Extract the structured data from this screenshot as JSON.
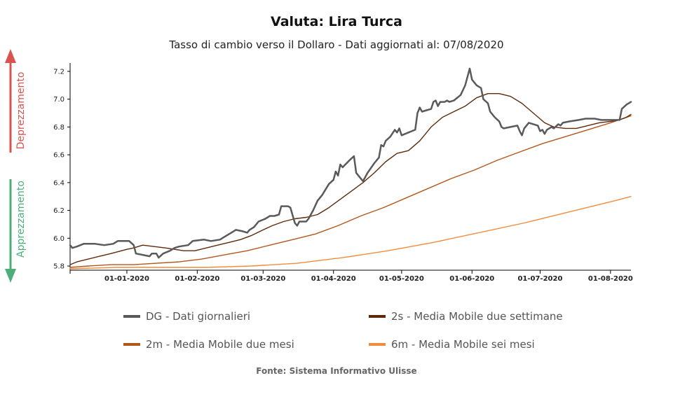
{
  "title": "Valuta: Lira Turca",
  "subtitle": "Tasso di cambio verso il Dollaro - Dati aggiornati al: 07/08/2020",
  "source": "Fonte: Sistema Informativo Ulisse",
  "side_labels": {
    "up": "Deprezzamento",
    "down": "Apprezzamento",
    "up_color": "#d9534f",
    "down_color": "#4caf7a"
  },
  "legend": [
    {
      "label": "DG - Dati giornalieri",
      "color": "#5a5a5a"
    },
    {
      "label": "2s - Media Mobile due settimane",
      "color": "#5c2a0a"
    },
    {
      "label": "2m - Media Mobile due mesi",
      "color": "#b3561a"
    },
    {
      "label": "6m - Media Mobile sei mesi",
      "color": "#f28c3c"
    }
  ],
  "chart_data": {
    "type": "line",
    "x_type": "date",
    "xlim": [
      "2019-12-07",
      "2020-08-10"
    ],
    "ylim": [
      5.77,
      7.26
    ],
    "yticks": [
      5.8,
      6.0,
      6.2,
      6.4,
      6.6,
      6.8,
      7.0,
      7.2
    ],
    "ytick_labels": [
      "5.8",
      "6.0",
      "6.2",
      "6.4",
      "6.6",
      "6.8",
      "7.0",
      "7.2"
    ],
    "xticks": [
      "2020-01-01",
      "2020-02-01",
      "2020-03-01",
      "2020-04-01",
      "2020-05-01",
      "2020-06-01",
      "2020-07-01",
      "2020-08-01"
    ],
    "xtick_labels": [
      "01-01-2020",
      "01-02-2020",
      "01-03-2020",
      "01-04-2020",
      "01-05-2020",
      "01-06-2020",
      "01-07-2020",
      "01-08-2020"
    ],
    "series": [
      {
        "name": "DG - Dati giornalieri",
        "color": "#5a5a5a",
        "width": 2.5,
        "points": [
          [
            "2019-12-07",
            5.95
          ],
          [
            "2019-12-08",
            5.93
          ],
          [
            "2019-12-10",
            5.94
          ],
          [
            "2019-12-13",
            5.96
          ],
          [
            "2019-12-18",
            5.96
          ],
          [
            "2019-12-22",
            5.95
          ],
          [
            "2019-12-26",
            5.96
          ],
          [
            "2019-12-28",
            5.98
          ],
          [
            "2020-01-02",
            5.98
          ],
          [
            "2020-01-04",
            5.95
          ],
          [
            "2020-01-05",
            5.89
          ],
          [
            "2020-01-08",
            5.88
          ],
          [
            "2020-01-11",
            5.87
          ],
          [
            "2020-01-12",
            5.89
          ],
          [
            "2020-01-14",
            5.89
          ],
          [
            "2020-01-15",
            5.86
          ],
          [
            "2020-01-17",
            5.89
          ],
          [
            "2020-01-20",
            5.91
          ],
          [
            "2020-01-22",
            5.93
          ],
          [
            "2020-01-24",
            5.94
          ],
          [
            "2020-01-28",
            5.95
          ],
          [
            "2020-01-30",
            5.98
          ],
          [
            "2020-02-04",
            5.99
          ],
          [
            "2020-02-07",
            5.98
          ],
          [
            "2020-02-11",
            5.99
          ],
          [
            "2020-02-14",
            6.02
          ],
          [
            "2020-02-16",
            6.04
          ],
          [
            "2020-02-18",
            6.06
          ],
          [
            "2020-02-21",
            6.05
          ],
          [
            "2020-02-23",
            6.04
          ],
          [
            "2020-02-24",
            6.06
          ],
          [
            "2020-02-26",
            6.08
          ],
          [
            "2020-02-28",
            6.12
          ],
          [
            "2020-03-02",
            6.14
          ],
          [
            "2020-03-04",
            6.16
          ],
          [
            "2020-03-06",
            6.16
          ],
          [
            "2020-03-08",
            6.17
          ],
          [
            "2020-03-09",
            6.23
          ],
          [
            "2020-03-12",
            6.23
          ],
          [
            "2020-03-13",
            6.22
          ],
          [
            "2020-03-15",
            6.11
          ],
          [
            "2020-03-16",
            6.09
          ],
          [
            "2020-03-17",
            6.12
          ],
          [
            "2020-03-20",
            6.12
          ],
          [
            "2020-03-21",
            6.14
          ],
          [
            "2020-03-23",
            6.2
          ],
          [
            "2020-03-25",
            6.27
          ],
          [
            "2020-03-27",
            6.31
          ],
          [
            "2020-03-30",
            6.39
          ],
          [
            "2020-04-01",
            6.42
          ],
          [
            "2020-04-02",
            6.48
          ],
          [
            "2020-04-03",
            6.45
          ],
          [
            "2020-04-04",
            6.53
          ],
          [
            "2020-04-05",
            6.51
          ],
          [
            "2020-04-08",
            6.56
          ],
          [
            "2020-04-10",
            6.59
          ],
          [
            "2020-04-11",
            6.47
          ],
          [
            "2020-04-13",
            6.43
          ],
          [
            "2020-04-14",
            6.41
          ],
          [
            "2020-04-16",
            6.47
          ],
          [
            "2020-04-19",
            6.54
          ],
          [
            "2020-04-21",
            6.58
          ],
          [
            "2020-04-22",
            6.67
          ],
          [
            "2020-04-23",
            6.66
          ],
          [
            "2020-04-24",
            6.7
          ],
          [
            "2020-04-26",
            6.73
          ],
          [
            "2020-04-28",
            6.78
          ],
          [
            "2020-04-29",
            6.76
          ],
          [
            "2020-04-30",
            6.79
          ],
          [
            "2020-05-01",
            6.74
          ],
          [
            "2020-05-04",
            6.76
          ],
          [
            "2020-05-07",
            6.78
          ],
          [
            "2020-05-08",
            6.9
          ],
          [
            "2020-05-09",
            6.94
          ],
          [
            "2020-05-10",
            6.91
          ],
          [
            "2020-05-12",
            6.92
          ],
          [
            "2020-05-14",
            6.93
          ],
          [
            "2020-05-15",
            6.98
          ],
          [
            "2020-05-16",
            6.99
          ],
          [
            "2020-05-17",
            6.95
          ],
          [
            "2020-05-18",
            6.98
          ],
          [
            "2020-05-20",
            6.98
          ],
          [
            "2020-05-21",
            6.99
          ],
          [
            "2020-05-22",
            6.98
          ],
          [
            "2020-05-24",
            6.99
          ],
          [
            "2020-05-27",
            7.03
          ],
          [
            "2020-05-29",
            7.1
          ],
          [
            "2020-05-31",
            7.22
          ],
          [
            "2020-06-01",
            7.14
          ],
          [
            "2020-06-03",
            7.1
          ],
          [
            "2020-06-05",
            7.08
          ],
          [
            "2020-06-06",
            7.0
          ],
          [
            "2020-06-08",
            6.97
          ],
          [
            "2020-06-09",
            6.91
          ],
          [
            "2020-06-11",
            6.87
          ],
          [
            "2020-06-13",
            6.84
          ],
          [
            "2020-06-14",
            6.8
          ],
          [
            "2020-06-15",
            6.79
          ],
          [
            "2020-06-18",
            6.8
          ],
          [
            "2020-06-21",
            6.81
          ],
          [
            "2020-06-22",
            6.77
          ],
          [
            "2020-06-23",
            6.74
          ],
          [
            "2020-06-24",
            6.79
          ],
          [
            "2020-06-26",
            6.83
          ],
          [
            "2020-06-28",
            6.82
          ],
          [
            "2020-06-30",
            6.81
          ],
          [
            "2020-07-01",
            6.77
          ],
          [
            "2020-07-02",
            6.78
          ],
          [
            "2020-07-03",
            6.75
          ],
          [
            "2020-07-04",
            6.78
          ],
          [
            "2020-07-06",
            6.8
          ],
          [
            "2020-07-07",
            6.79
          ],
          [
            "2020-07-09",
            6.82
          ],
          [
            "2020-07-10",
            6.81
          ],
          [
            "2020-07-11",
            6.83
          ],
          [
            "2020-07-14",
            6.84
          ],
          [
            "2020-07-18",
            6.85
          ],
          [
            "2020-07-21",
            6.86
          ],
          [
            "2020-07-25",
            6.86
          ],
          [
            "2020-07-28",
            6.85
          ],
          [
            "2020-07-31",
            6.85
          ],
          [
            "2020-08-04",
            6.85
          ],
          [
            "2020-08-05",
            6.85
          ],
          [
            "2020-08-06",
            6.93
          ],
          [
            "2020-08-08",
            6.96
          ],
          [
            "2020-08-10",
            6.98
          ]
        ]
      },
      {
        "name": "2s - Media Mobile due settimane",
        "color": "#5c2a0a",
        "width": 1.4,
        "points": [
          [
            "2019-12-07",
            5.81
          ],
          [
            "2019-12-10",
            5.83
          ],
          [
            "2019-12-15",
            5.85
          ],
          [
            "2019-12-20",
            5.87
          ],
          [
            "2019-12-25",
            5.89
          ],
          [
            "2020-01-01",
            5.92
          ],
          [
            "2020-01-04",
            5.93
          ],
          [
            "2020-01-08",
            5.95
          ],
          [
            "2020-01-13",
            5.94
          ],
          [
            "2020-01-18",
            5.93
          ],
          [
            "2020-01-22",
            5.92
          ],
          [
            "2020-01-26",
            5.91
          ],
          [
            "2020-01-31",
            5.91
          ],
          [
            "2020-02-05",
            5.93
          ],
          [
            "2020-02-10",
            5.95
          ],
          [
            "2020-02-15",
            5.97
          ],
          [
            "2020-02-20",
            5.99
          ],
          [
            "2020-02-25",
            6.02
          ],
          [
            "2020-03-01",
            6.06
          ],
          [
            "2020-03-05",
            6.09
          ],
          [
            "2020-03-10",
            6.12
          ],
          [
            "2020-03-15",
            6.14
          ],
          [
            "2020-03-20",
            6.15
          ],
          [
            "2020-03-25",
            6.17
          ],
          [
            "2020-03-30",
            6.22
          ],
          [
            "2020-04-04",
            6.28
          ],
          [
            "2020-04-09",
            6.34
          ],
          [
            "2020-04-14",
            6.4
          ],
          [
            "2020-04-19",
            6.47
          ],
          [
            "2020-04-24",
            6.55
          ],
          [
            "2020-04-29",
            6.61
          ],
          [
            "2020-05-04",
            6.63
          ],
          [
            "2020-05-09",
            6.7
          ],
          [
            "2020-05-14",
            6.8
          ],
          [
            "2020-05-19",
            6.87
          ],
          [
            "2020-05-24",
            6.91
          ],
          [
            "2020-05-29",
            6.95
          ],
          [
            "2020-06-03",
            7.01
          ],
          [
            "2020-06-08",
            7.04
          ],
          [
            "2020-06-13",
            7.04
          ],
          [
            "2020-06-18",
            7.02
          ],
          [
            "2020-06-23",
            6.97
          ],
          [
            "2020-06-28",
            6.9
          ],
          [
            "2020-07-03",
            6.83
          ],
          [
            "2020-07-07",
            6.8
          ],
          [
            "2020-07-12",
            6.79
          ],
          [
            "2020-07-17",
            6.79
          ],
          [
            "2020-07-22",
            6.81
          ],
          [
            "2020-07-27",
            6.83
          ],
          [
            "2020-08-01",
            6.84
          ],
          [
            "2020-08-05",
            6.85
          ],
          [
            "2020-08-08",
            6.87
          ],
          [
            "2020-08-10",
            6.89
          ]
        ]
      },
      {
        "name": "2m - Media Mobile due mesi",
        "color": "#b3561a",
        "width": 1.4,
        "points": [
          [
            "2019-12-07",
            5.79
          ],
          [
            "2019-12-15",
            5.8
          ],
          [
            "2019-12-25",
            5.81
          ],
          [
            "2020-01-04",
            5.81
          ],
          [
            "2020-01-14",
            5.82
          ],
          [
            "2020-01-24",
            5.83
          ],
          [
            "2020-02-03",
            5.85
          ],
          [
            "2020-02-13",
            5.88
          ],
          [
            "2020-02-23",
            5.91
          ],
          [
            "2020-03-04",
            5.95
          ],
          [
            "2020-03-14",
            5.99
          ],
          [
            "2020-03-24",
            6.03
          ],
          [
            "2020-04-03",
            6.09
          ],
          [
            "2020-04-13",
            6.16
          ],
          [
            "2020-04-23",
            6.22
          ],
          [
            "2020-05-03",
            6.29
          ],
          [
            "2020-05-13",
            6.36
          ],
          [
            "2020-05-23",
            6.43
          ],
          [
            "2020-06-02",
            6.49
          ],
          [
            "2020-06-12",
            6.56
          ],
          [
            "2020-06-22",
            6.62
          ],
          [
            "2020-07-02",
            6.68
          ],
          [
            "2020-07-12",
            6.73
          ],
          [
            "2020-07-22",
            6.78
          ],
          [
            "2020-08-01",
            6.83
          ],
          [
            "2020-08-10",
            6.88
          ]
        ]
      },
      {
        "name": "6m - Media Mobile sei mesi",
        "color": "#f28c3c",
        "width": 1.4,
        "points": [
          [
            "2019-12-07",
            5.78
          ],
          [
            "2019-12-27",
            5.79
          ],
          [
            "2020-01-16",
            5.79
          ],
          [
            "2020-02-05",
            5.79
          ],
          [
            "2020-02-25",
            5.8
          ],
          [
            "2020-03-16",
            5.82
          ],
          [
            "2020-04-05",
            5.86
          ],
          [
            "2020-04-25",
            5.91
          ],
          [
            "2020-05-15",
            5.97
          ],
          [
            "2020-06-04",
            6.04
          ],
          [
            "2020-06-24",
            6.11
          ],
          [
            "2020-07-14",
            6.19
          ],
          [
            "2020-08-03",
            6.27
          ],
          [
            "2020-08-10",
            6.3
          ]
        ]
      }
    ]
  }
}
